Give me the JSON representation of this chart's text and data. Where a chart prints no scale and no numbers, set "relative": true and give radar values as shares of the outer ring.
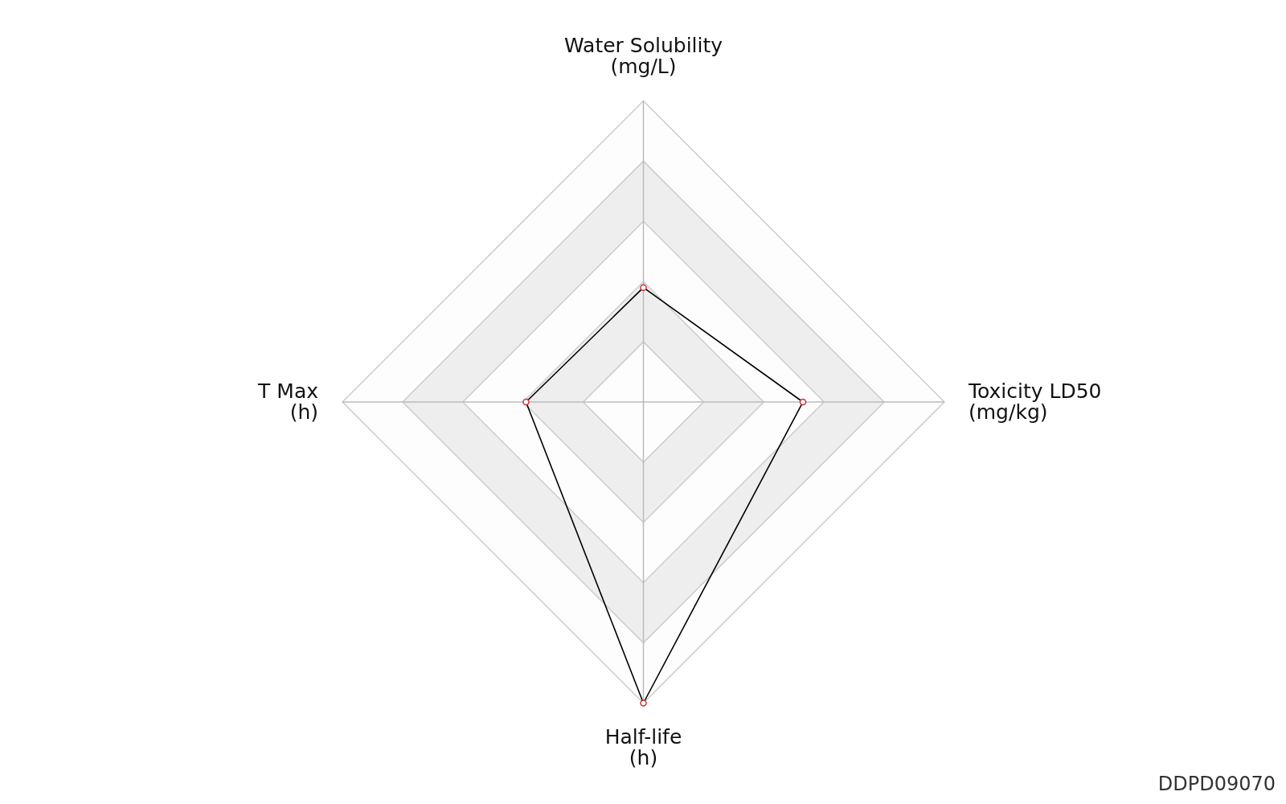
{
  "chart_data": {
    "type": "radar",
    "relative": true,
    "categories": [
      "Water Solubility\n(mg/L)",
      "Toxicity LD50\n(mg/kg)",
      "Half-life\n(h)",
      "T Max\n(h)"
    ],
    "series": [
      {
        "color": "#000000",
        "values": [
          0.38,
          0.53,
          1.0,
          0.39
        ]
      }
    ],
    "marker": "circle",
    "grid": true,
    "annotations": [
      "DDPD09070"
    ]
  }
}
